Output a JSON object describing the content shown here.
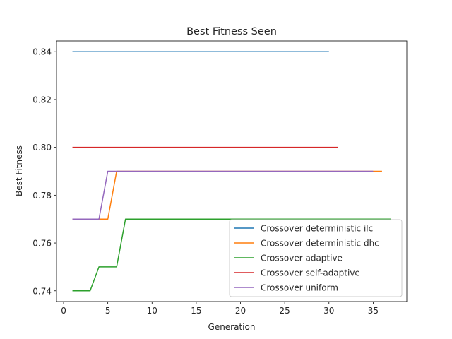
{
  "chart_data": {
    "type": "line",
    "title": "Best Fitness Seen",
    "xlabel": "Generation",
    "ylabel": "Best Fitness",
    "xlim": [
      -0.8,
      38.8
    ],
    "ylim": [
      0.7355,
      0.8445
    ],
    "xticks": [
      0,
      5,
      10,
      15,
      20,
      25,
      30,
      35
    ],
    "yticks": [
      0.74,
      0.76,
      0.78,
      0.8,
      0.82,
      0.84
    ],
    "ytick_labels": [
      "0.74",
      "0.76",
      "0.78",
      "0.80",
      "0.82",
      "0.84"
    ],
    "grid": false,
    "legend_position": "lower-right",
    "series": [
      {
        "name": "Crossover deterministic ilc",
        "color": "#1f77b4",
        "points": [
          [
            1,
            0.84
          ],
          [
            30,
            0.84
          ]
        ]
      },
      {
        "name": "Crossover deterministic dhc",
        "color": "#ff7f0e",
        "points": [
          [
            1,
            0.77
          ],
          [
            5,
            0.77
          ],
          [
            6,
            0.79
          ],
          [
            36,
            0.79
          ]
        ]
      },
      {
        "name": "Crossover adaptive",
        "color": "#2ca02c",
        "points": [
          [
            1,
            0.74
          ],
          [
            3,
            0.74
          ],
          [
            4,
            0.75
          ],
          [
            6,
            0.75
          ],
          [
            7,
            0.77
          ],
          [
            37,
            0.77
          ]
        ]
      },
      {
        "name": "Crossover self-adaptive",
        "color": "#d62728",
        "points": [
          [
            1,
            0.8
          ],
          [
            31,
            0.8
          ]
        ]
      },
      {
        "name": "Crossover uniform",
        "color": "#9467bd",
        "points": [
          [
            1,
            0.77
          ],
          [
            4,
            0.77
          ],
          [
            5,
            0.79
          ],
          [
            35,
            0.79
          ]
        ]
      }
    ]
  }
}
